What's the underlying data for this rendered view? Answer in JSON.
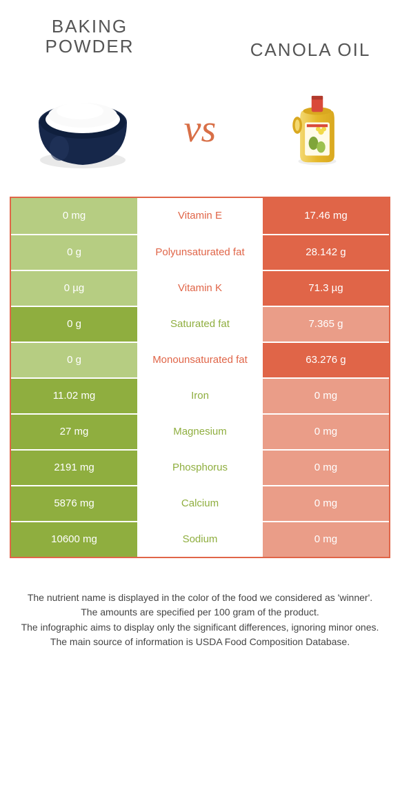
{
  "header": {
    "left_title_line1": "Baking",
    "left_title_line2": "powder",
    "right_title": "Canola oil",
    "vs": "vs"
  },
  "colors": {
    "green": "#8fae3f",
    "light_green": "#b6cd82",
    "orange": "#e06548",
    "light_orange": "#ea9d88",
    "vs_text": "#d86f47"
  },
  "table": {
    "rows": [
      {
        "left": "0 mg",
        "mid": "Vitamin E",
        "right": "17.46 mg",
        "winner": "right"
      },
      {
        "left": "0 g",
        "mid": "Polyunsaturated fat",
        "right": "28.142 g",
        "winner": "right"
      },
      {
        "left": "0 µg",
        "mid": "Vitamin K",
        "right": "71.3 µg",
        "winner": "right"
      },
      {
        "left": "0 g",
        "mid": "Saturated fat",
        "right": "7.365 g",
        "winner": "left"
      },
      {
        "left": "0 g",
        "mid": "Monounsaturated fat",
        "right": "63.276 g",
        "winner": "right"
      },
      {
        "left": "11.02 mg",
        "mid": "Iron",
        "right": "0 mg",
        "winner": "left"
      },
      {
        "left": "27 mg",
        "mid": "Magnesium",
        "right": "0 mg",
        "winner": "left"
      },
      {
        "left": "2191 mg",
        "mid": "Phosphorus",
        "right": "0 mg",
        "winner": "left"
      },
      {
        "left": "5876 mg",
        "mid": "Calcium",
        "right": "0 mg",
        "winner": "left"
      },
      {
        "left": "10600 mg",
        "mid": "Sodium",
        "right": "0 mg",
        "winner": "left"
      }
    ]
  },
  "footnotes": {
    "l1": "The nutrient name is displayed in the color of the food we considered as 'winner'.",
    "l2": "The amounts are specified per 100 gram of the product.",
    "l3": "The infographic aims to display only the significant differences, ignoring minor ones.",
    "l4": "The main source of information is USDA Food Composition Database."
  }
}
